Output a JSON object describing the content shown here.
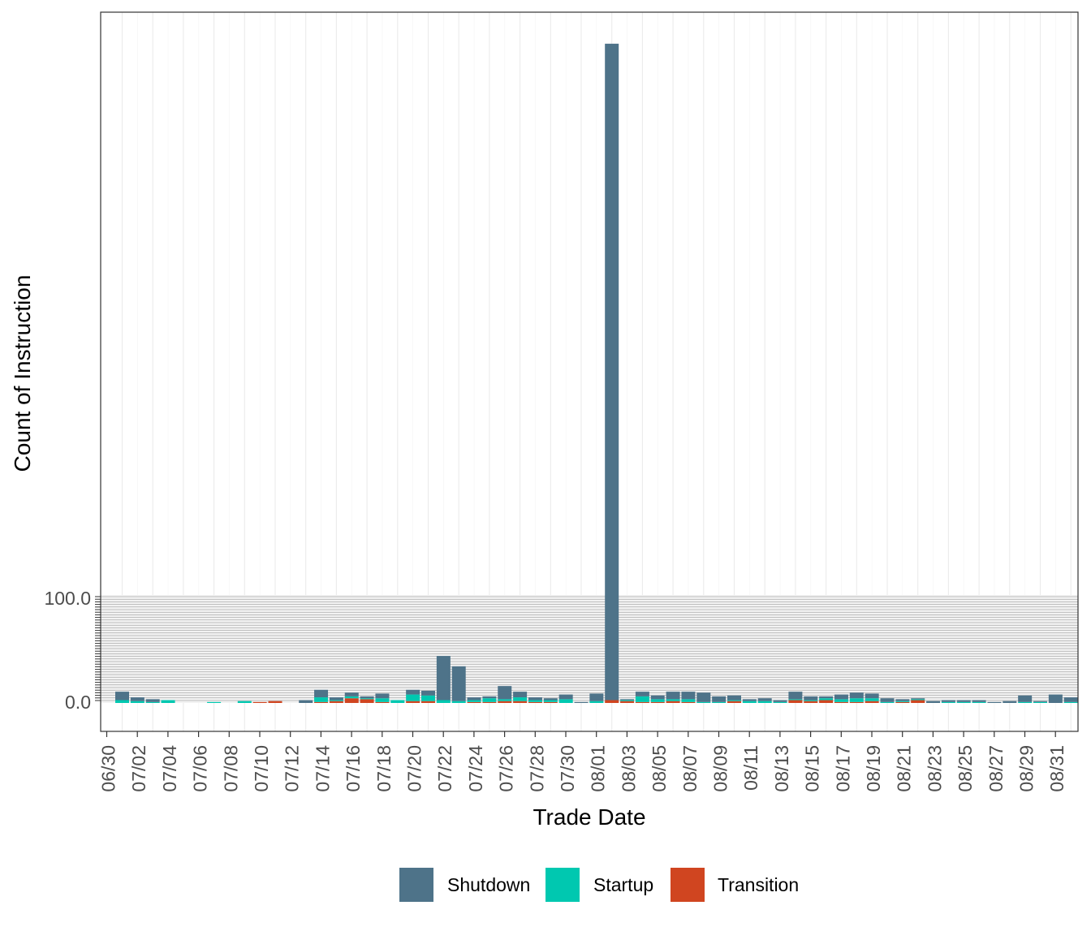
{
  "chart_data": {
    "type": "bar",
    "stacked": true,
    "xlabel": "Trade Date",
    "ylabel": "Count of Instruction",
    "x": [
      "06/30",
      "07/01",
      "07/02",
      "07/03",
      "07/04",
      "07/05",
      "07/06",
      "07/07",
      "07/08",
      "07/09",
      "07/10",
      "07/11",
      "07/12",
      "07/13",
      "07/14",
      "07/15",
      "07/16",
      "07/17",
      "07/18",
      "07/19",
      "07/20",
      "07/21",
      "07/22",
      "07/23",
      "07/24",
      "07/25",
      "07/26",
      "07/27",
      "07/28",
      "07/29",
      "07/30",
      "07/31",
      "08/01",
      "08/02",
      "08/03",
      "08/04",
      "08/05",
      "08/06",
      "08/07",
      "08/08",
      "08/09",
      "08/10",
      "08/11",
      "08/12",
      "08/13",
      "08/14",
      "08/15",
      "08/16",
      "08/17",
      "08/18",
      "08/19",
      "08/20",
      "08/21",
      "08/22",
      "08/23",
      "08/24",
      "08/25",
      "08/26",
      "08/27",
      "08/28",
      "08/29",
      "08/30",
      "08/31"
    ],
    "x_tick_labels": [
      "06/30",
      "07/02",
      "07/04",
      "07/06",
      "07/08",
      "07/10",
      "07/12",
      "07/14",
      "07/16",
      "07/18",
      "07/20",
      "07/22",
      "07/24",
      "07/26",
      "07/28",
      "07/30",
      "08/01",
      "08/03",
      "08/05",
      "08/07",
      "08/09",
      "08/11",
      "08/13",
      "08/15",
      "08/17",
      "08/19",
      "08/21",
      "08/23",
      "08/25",
      "08/27",
      "08/29",
      "08/31"
    ],
    "y_tick_labels": [
      "100.0",
      "0.0"
    ],
    "ylim": [
      0,
      700
    ],
    "series": [
      {
        "name": "Shutdown",
        "color": "#4e7389",
        "values": [
          9,
          4,
          3,
          0,
          0,
          0,
          0,
          0,
          0,
          0,
          0,
          0,
          3,
          8,
          3,
          4,
          2,
          5,
          0,
          5,
          5,
          47,
          37,
          3,
          2,
          14,
          6,
          3,
          2,
          5,
          1,
          8,
          698,
          1,
          5,
          4,
          8,
          8,
          10,
          6,
          5,
          2,
          3,
          2,
          8,
          4,
          2,
          5,
          6,
          5,
          4,
          2,
          1,
          2,
          2,
          2,
          2,
          1,
          2,
          7,
          1,
          9,
          5
        ]
      },
      {
        "name": "Startup",
        "color": "#00c8b0",
        "values": [
          3,
          2,
          1,
          3,
          0,
          0,
          1,
          0,
          2,
          0,
          0,
          0,
          0,
          5,
          1,
          2,
          1,
          4,
          3,
          7,
          6,
          3,
          2,
          2,
          4,
          2,
          4,
          2,
          2,
          4,
          0,
          2,
          0,
          1,
          6,
          3,
          2,
          3,
          1,
          1,
          1,
          2,
          2,
          1,
          1,
          1,
          2,
          3,
          4,
          3,
          1,
          1,
          1,
          0,
          1,
          1,
          1,
          0,
          0,
          1,
          1,
          0,
          1
        ]
      },
      {
        "name": "Transition",
        "color": "#d04520",
        "values": [
          0,
          0,
          0,
          0,
          0,
          0,
          0,
          0,
          0,
          1,
          2,
          0,
          0,
          1,
          2,
          5,
          4,
          1,
          0,
          2,
          2,
          0,
          0,
          1,
          1,
          2,
          2,
          1,
          1,
          0,
          0,
          0,
          3,
          2,
          1,
          1,
          2,
          1,
          0,
          0,
          2,
          0,
          0,
          0,
          3,
          2,
          3,
          1,
          1,
          2,
          0,
          1,
          3,
          0,
          0,
          0,
          0,
          0,
          0,
          0,
          0,
          0,
          0
        ]
      }
    ],
    "legend_position": "bottom",
    "grid": true
  }
}
